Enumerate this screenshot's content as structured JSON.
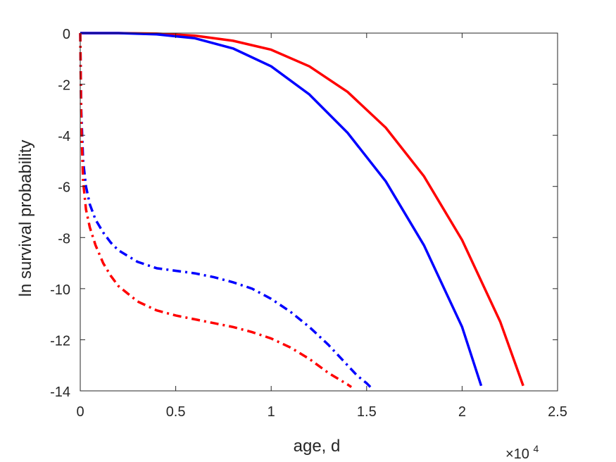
{
  "chart_data": {
    "type": "line",
    "title": "",
    "xlabel": "age, d",
    "ylabel": "ln survival probability",
    "x_multiplier_label": "×10",
    "x_multiplier_exponent": "4",
    "xlim": [
      0,
      25000
    ],
    "ylim": [
      -14,
      0
    ],
    "xticks": [
      0,
      5000,
      10000,
      15000,
      20000,
      25000
    ],
    "xtick_labels": [
      "0",
      "0.5",
      "1",
      "1.5",
      "2",
      "2.5"
    ],
    "yticks": [
      0,
      -2,
      -4,
      -6,
      -8,
      -10,
      -12,
      -14
    ],
    "ytick_labels": [
      "0",
      "-2",
      "-4",
      "-6",
      "-8",
      "-10",
      "-12",
      "-14"
    ],
    "grid": false,
    "legend": "none",
    "series": [
      {
        "color": "#ff0000",
        "style": "solid",
        "x": [
          0,
          2000,
          4000,
          6000,
          8000,
          10000,
          12000,
          14000,
          16000,
          18000,
          20000,
          22000,
          23200
        ],
        "y": [
          0,
          0,
          -0.02,
          -0.1,
          -0.3,
          -0.65,
          -1.3,
          -2.3,
          -3.7,
          -5.6,
          -8.1,
          -11.3,
          -13.8
        ]
      },
      {
        "color": "#0000ff",
        "style": "solid",
        "x": [
          0,
          2000,
          4000,
          6000,
          8000,
          10000,
          12000,
          14000,
          16000,
          18000,
          20000,
          21000
        ],
        "y": [
          0,
          0,
          -0.05,
          -0.2,
          -0.6,
          -1.3,
          -2.4,
          -3.9,
          -5.8,
          -8.3,
          -11.5,
          -13.8
        ]
      },
      {
        "color": "#0000ff",
        "style": "dashdot",
        "x": [
          0,
          50,
          150,
          300,
          500,
          800,
          1200,
          1600,
          2000,
          3000,
          4000,
          5000,
          6000,
          7000,
          8000,
          9000,
          10000,
          11000,
          12000,
          13000,
          14000,
          14500,
          15000,
          15200
        ],
        "y": [
          0,
          -3.0,
          -5.0,
          -6.0,
          -6.7,
          -7.3,
          -7.8,
          -8.2,
          -8.5,
          -8.95,
          -9.2,
          -9.3,
          -9.4,
          -9.55,
          -9.75,
          -10.0,
          -10.4,
          -10.9,
          -11.5,
          -12.2,
          -13.0,
          -13.4,
          -13.7,
          -13.85
        ]
      },
      {
        "color": "#ff0000",
        "style": "dashdot",
        "x": [
          0,
          50,
          150,
          300,
          500,
          800,
          1200,
          1600,
          2000,
          3000,
          4000,
          5000,
          6000,
          7000,
          8000,
          9000,
          10000,
          11000,
          12000,
          13000,
          14000,
          14200
        ],
        "y": [
          0,
          -3.5,
          -5.8,
          -6.9,
          -7.6,
          -8.3,
          -9.0,
          -9.5,
          -9.9,
          -10.5,
          -10.85,
          -11.05,
          -11.2,
          -11.35,
          -11.5,
          -11.7,
          -11.95,
          -12.3,
          -12.75,
          -13.3,
          -13.75,
          -13.85
        ]
      }
    ]
  }
}
